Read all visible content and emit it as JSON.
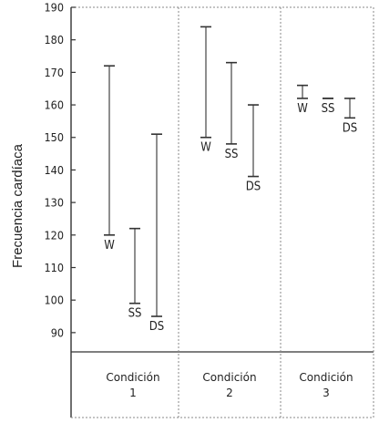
{
  "chart_data": {
    "type": "range",
    "ylabel": "Frecuencia cardíaca",
    "ylim": [
      85,
      190
    ],
    "yticks": [
      90,
      100,
      110,
      120,
      130,
      140,
      150,
      160,
      170,
      180,
      190
    ],
    "conditions": [
      {
        "label_line1": "Condición",
        "label_line2": "1",
        "ranges": [
          {
            "name": "W",
            "low": 120,
            "high": 172
          },
          {
            "name": "SS",
            "low": 99,
            "high": 122
          },
          {
            "name": "DS",
            "low": 95,
            "high": 151
          }
        ]
      },
      {
        "label_line1": "Condición",
        "label_line2": "2",
        "ranges": [
          {
            "name": "W",
            "low": 150,
            "high": 184
          },
          {
            "name": "SS",
            "low": 148,
            "high": 173
          },
          {
            "name": "DS",
            "low": 138,
            "high": 160
          }
        ]
      },
      {
        "label_line1": "Condición",
        "label_line2": "3",
        "ranges": [
          {
            "name": "W",
            "low": 162,
            "high": 166
          },
          {
            "name": "SS",
            "low": 162,
            "high": 162
          },
          {
            "name": "DS",
            "low": 156,
            "high": 162
          }
        ]
      }
    ],
    "grid": false
  }
}
